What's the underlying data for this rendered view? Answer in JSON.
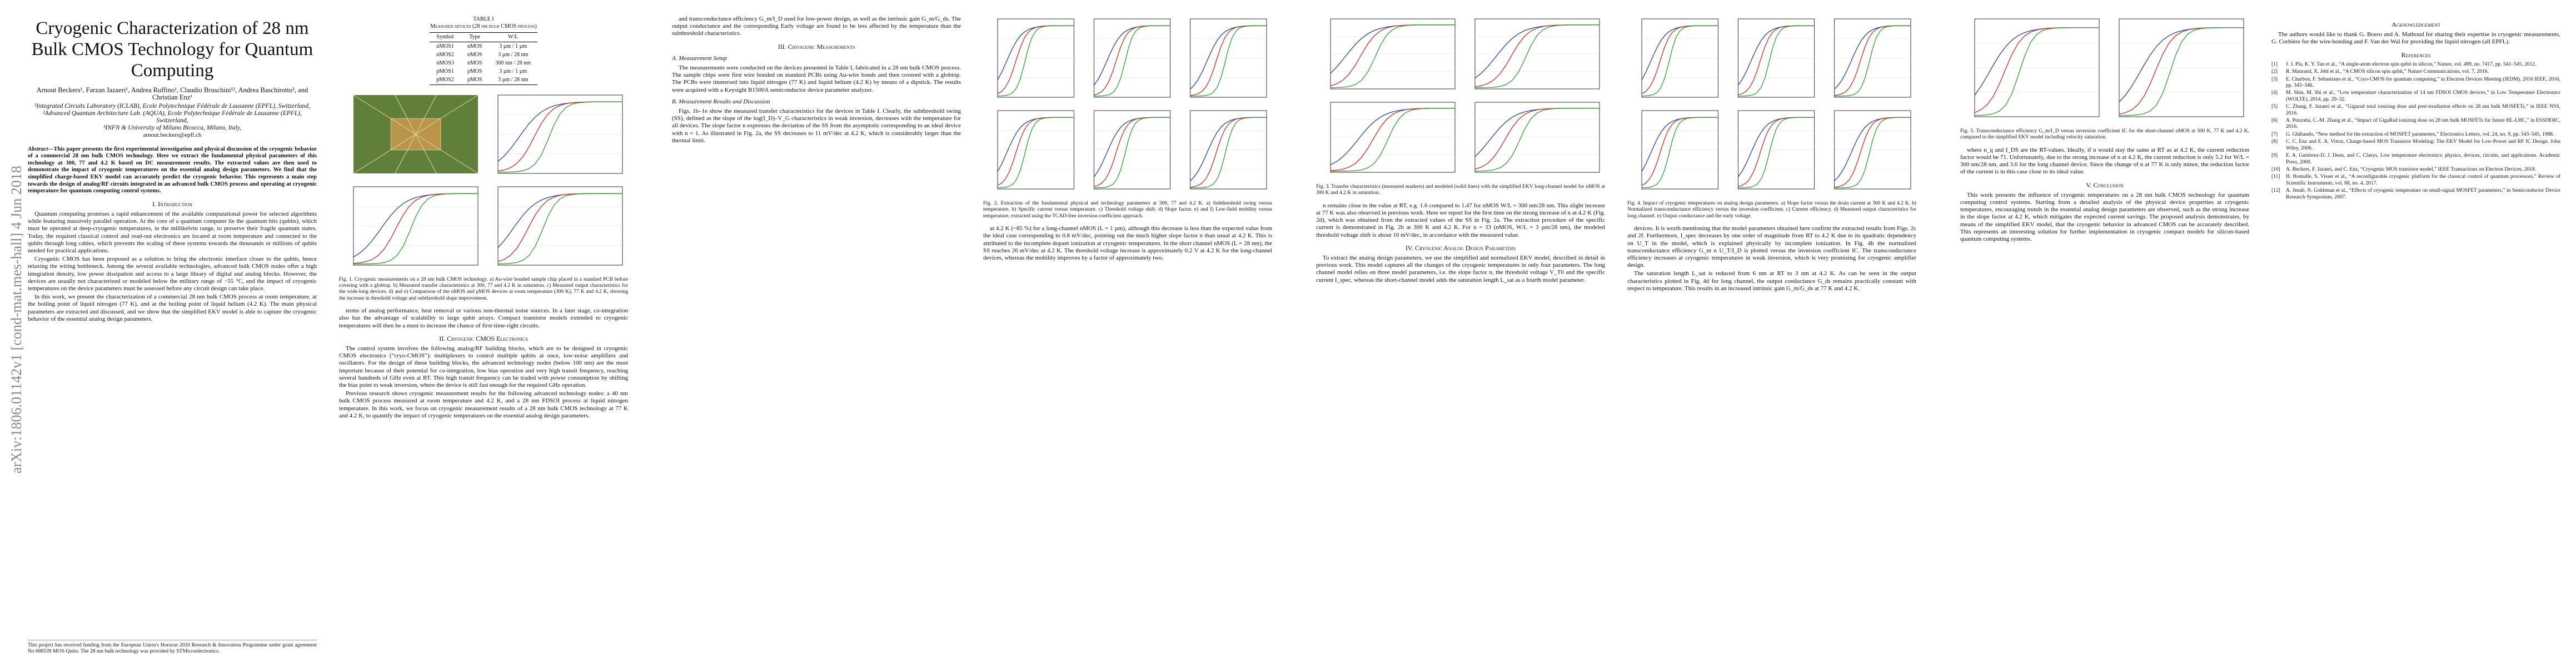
{
  "side_label": "arXiv:1806.01142v1  [cond-mat.mes-hall]  4 Jun 2018",
  "header": {
    "title": "Cryogenic Characterization of 28 nm Bulk CMOS Technology for Quantum Computing",
    "authors": "Arnout Beckers¹, Farzan Jazaeri¹, Andrea Ruffino¹, Claudio Bruschini¹², Andrea Baschirotto³, and Christian Enz¹",
    "affiliations": [
      "¹Integrated Circuits Laboratory (ICLAB), Ecole Polytechnique Fédérale de Lausanne (EPFL), Switzerland,",
      "²Advanced Quantum Architecture Lab. (AQUA), Ecole Polytechnique Fédérale de Lausanne (EPFL), Switzerland,",
      "³INFN & University of Milano Bicocca, Milano, Italy,"
    ],
    "email": "arnout.beckers@epfl.ch"
  },
  "abstract": {
    "label": "Abstract—",
    "text": "This paper presents the first experimental investigation and physical discussion of the cryogenic behavior of a commercial 28 nm bulk CMOS technology. Here we extract the fundamental physical parameters of this technology at 300, 77 and 4.2 K based on DC measurement results. The extracted values are then used to demonstrate the impact of cryogenic temperatures on the essential analog design parameters. We find that the simplified charge-based EKV model can accurately predict the cryogenic behavior. This represents a main step towards the design of analog/RF circuits integrated in an advanced bulk CMOS process and operating at cryogenic temperature for quantum computing control systems."
  },
  "footnote": "This project has received funding from the European Union's Horizon 2020 Research & Innovation Programme under grant agreement No 688539 MOS-Quito. The 28 nm bulk technology was provided by STMicroelectronics.",
  "table": {
    "title": "TABLE I",
    "caption": "Measured devices (28 nm bulk CMOS process)",
    "header": [
      "Symbol",
      "Type",
      "W/L"
    ],
    "rows": [
      [
        "nMOS1",
        "nMOS",
        "3 µm / 1 µm"
      ],
      [
        "nMOS2",
        "nMOS",
        "3 µm / 28 nm"
      ],
      [
        "nMOS3",
        "nMOS",
        "300 nm / 28 nm"
      ],
      [
        "pMOS1",
        "pMOS",
        "3 µm / 1 µm"
      ],
      [
        "pMOS2",
        "pMOS",
        "3 µm / 28 nm"
      ]
    ]
  },
  "figures": [
    {
      "caption": "Fig. 1. Cryogenic measurements on a 28 nm bulk CMOS technology. a) Au-wire bonded sample chip placed in a standard PCB before covering with a globtop. b) Measured transfer characteristics at 300, 77 and 4.2 K in saturation. c) Measured output characteristics for the wide-long devices. d) and e) Comparison of the nMOS and pMOS devices at room temperature (300 K), 77 K and 4.2 K, showing the increase in threshold voltage and subthreshold slope improvement."
    },
    {
      "caption": "Fig. 2. Extraction of the fundamental physical and technology parameters at 300, 77 and 4.2 K. a) Subthreshold swing versus temperature. b) Specific current versus temperature. c) Threshold voltage shift. d) Slope factor. e) and f) Low-field mobility versus temperature, extracted using the TCAD-free inversion coefficient approach."
    },
    {
      "caption": "Fig. 3. Transfer characteristics (measured markers) and modeled (solid lines) with the simplified EKV long-channel model for nMOS at 300 K and 4.2 K in saturation."
    },
    {
      "caption": "Fig. 4. Impact of cryogenic temperatures on analog design parameters. a) Slope factor versus the drain current at 300 K and 4.2 K. b) Normalized transconductance efficiency versus the inversion coefficient. c) Current efficiency. d) Measured output characteristics for long channel. e) Output conductance and the early voltage."
    },
    {
      "caption": "Fig. 5. Transconductance efficiency G_m/I_D versus inversion coefficient IC for the short-channel nMOS at 300 K, 77 K and 4.2 K, compared to the simplified EKV model including velocity saturation."
    }
  ],
  "body": [
    [
      {
        "heading": "I. Introduction"
      },
      {
        "text": "Quantum computing promises a rapid enhancement of the available computational power for selected algorithms while featuring massively parallel operation. At the core of a quantum computer lie the quantum bits (qubits), which must be operated at deep-cryogenic temperatures, in the millikelvin range, to preserve their fragile quantum states. Today, the required classical control and read-out electronics are located at room temperature and connected to the qubits through long cables, which prevents the scaling of these systems towards the thousands or millions of qubits needed for practical applications."
      },
      {
        "text": "Cryogenic CMOS has been proposed as a solution to bring the electronic interface closer to the qubits, hence relaxing the wiring bottleneck. Among the several available technologies, advanced bulk CMOS nodes offer a high integration density, low power dissipation and access to a large library of digital and analog blocks. However, the devices are usually not characterized or modeled below the military range of −55 °C, and the impact of cryogenic temperatures on the device parameters must be assessed before any circuit design can take place."
      },
      {
        "text": "In this work, we present the characterization of a commercial 28 nm bulk CMOS process at room temperature, at the boiling point of liquid nitrogen (77 K), and at the boiling point of liquid helium (4.2 K). The main physical parameters are extracted and discussed, and we show that the simplified EKV model is able to capture the cryogenic behavior of the essential analog design parameters."
      }
    ],
    [
      {
        "text": "terms of analog performance, heat removal or various non-thermal noise sources. In a later stage, co-integration also has the advantage of scalability to large qubit arrays. Compact transistor models extended to cryogenic temperatures will then be a must to increase the chance of first-time-right circuits."
      },
      {
        "heading": "II. Cryogenic CMOS Electronics"
      },
      {
        "text": "The control system involves the following analog/RF building blocks, which are to be designed in cryogenic CMOS electronics (“cryo-CMOS”): multiplexers to control multiple qubits at once, low-noise amplifiers and oscillators. For the design of these building blocks, the advanced technology nodes (below 100 nm) are the most important because of their potential for co-integration, low bias operation and very high transit frequency, reaching several hundreds of GHz even at RT. This high transit frequency can be traded with power consumption by shifting the bias point to weak inversion, where the device is still fast enough for the required GHz operation."
      },
      {
        "text": "Previous research shows cryogenic measurement results for the following advanced technology nodes: a 40 nm bulk CMOS process measured at room temperature and 4.2 K, and a 28 nm FDSOI process at liquid nitrogen temperature. In this work, we focus on cryogenic measurement results of a 28 nm bulk CMOS technology at 77 K and 4.2 K, to quantify the impact of cryogenic temperatures on the essential analog design parameters."
      }
    ],
    [
      {
        "text": "and transconductance efficiency G_m/I_D used for low-power design, as well as the intrinsic gain G_m/G_ds. The output conductance and the corresponding Early voltage are found to be less affected by the temperature than the subthreshold characteristics."
      },
      {
        "heading": "III. Cryogenic Measurements"
      },
      {
        "subheading": "A. Measurement Setup"
      },
      {
        "text": "The measurements were conducted on the devices presented in Table I, fabricated in a 28 nm bulk CMOS process. The sample chips were first wire bonded on standard PCBs using Au-wire bonds and then covered with a globtop. The PCBs were immersed into liquid nitrogen (77 K) and liquid helium (4.2 K) by means of a dipstick. The results were acquired with a Keysight B1500A semiconductor device parameter analyzer."
      },
      {
        "subheading": "B. Measurement Results and Discussion"
      },
      {
        "text": "Figs. 1b–1e show the measured transfer characteristics for the devices in Table I. Clearly, the subthreshold swing (SS), defined as the slope of the log(I_D)–V_G characteristics in weak inversion, decreases with the temperature for all devices. The slope factor n expresses the deviation of the SS from the asymptotic corresponding to an ideal device with n = 1. As illustrated in Fig. 2a, the SS decreases to 11 mV/dec at 4.2 K, which is considerably larger than the thermal limit."
      }
    ],
    [
      {
        "text": "at 4.2 K (~85 %) for a long-channel nMOS (L = 1 µm), although this decrease is less than the expected value from the ideal case corresponding to 0.8 mV/dec, pointing out the much higher slope factor n than usual at 4.2 K. This is attributed to the incomplete dopant ionization at cryogenic temperatures. In the short channel nMOS (L = 28 nm), the SS reaches 26 mV/dec at 4.2 K. The threshold voltage increase is approximately 0.2 V at 4.2 K for the long-channel devices, whereas the mobility improves by a factor of approximately two."
      }
    ],
    [
      {
        "text": "n remains close to the value at RT, e.g. 1.6 compared to 1.47 for nMOS W/L = 300 nm/28 nm. This slight increase at 77 K was also observed in previous work. Here we report for the first time on the strong increase of n at 4.2 K (Fig. 2d), which was obtained from the extracted values of the SS in Fig. 2a. The extraction procedure of the specific current is demonstrated in Fig. 2b at 300 K and 4.2 K. For n = 33 (nMOS, W/L = 3 µm/28 nm), the modeled threshold voltage shift is about 10 mV/dec, in accordance with the measured value."
      },
      {
        "heading": "IV. Cryogenic Analog Design Parameters"
      },
      {
        "text": "To extract the analog design parameters, we use the simplified and normalized EKV model, described in detail in previous work. This model captures all the changes of the cryogenic temperatures in only four parameters. The long channel model relies on three model parameters, i.e. the slope factor n, the threshold voltage V_T0 and the specific current I_spec, whereas the short-channel model adds the saturation length L_sat as a fourth model parameter."
      }
    ],
    [
      {
        "text": "devices. It is worth mentioning that the model parameters obtained here confirm the extracted results from Figs. 2c and 2f. Furthermore, I_spec decreases by one order of magnitude from RT to 4.2 K due to its quadratic dependency on U_T in the model, which is explained physically by incomplete ionization. In Fig. 4b the normalized transconductance efficiency G_m n U_T/I_D is plotted versus the inversion coefficient IC. The transconductance efficiency increases at cryogenic temperatures in weak inversion, which is very promising for cryogenic amplifier design."
      },
      {
        "text": "The saturation length L_sat is reduced from 6 nm at RT to 3 nm at 4.2 K. As can be seen in the output characteristics plotted in Fig. 4d for long channel, the output conductance G_ds remains practically constant with respect to temperature. This results in an increased intrinsic gain G_m/G_ds at 77 K and 4.2 K."
      }
    ],
    [
      {
        "text": "where n_q and I_DS are the RT-values. Ideally, if n would stay the same at RT as at 4.2 K, the current reduction factor would be 71. Unfortunately, due to the strong increase of n at 4.2 K, the current reduction is only 5.2 for W/L = 300 nm/28 nm, and 3.6 for the long channel device. Since the change of n at 77 K is only minor, the reduction factor of the current is in this case close to its ideal value."
      },
      {
        "heading": "V. Conclusion"
      },
      {
        "text": "This work presents the influence of cryogenic temperatures on a 28 nm bulk CMOS technology for quantum computing control systems. Starting from a detailed analysis of the physical device properties at cryogenic temperatures, encouraging trends in the essential analog design parameters are observed, such as the strong increase in the slope factor at 4.2 K, which mitigates the expected current savings. The proposed analysis demonstrates, by means of the simplified EKV model, that the cryogenic behavior in advanced CMOS can be accurately described. This represents an interesting solution for further implementation in cryogenic compact models for silicon-based quantum computing systems."
      }
    ],
    [
      {
        "heading": "Acknowledgement"
      },
      {
        "text": "The authors would like to thank G. Boero and A. Mathoud for sharing their expertise in cryogenic measurements, G. Corbière for the wire-bonding and F. Van der Wal for providing the liquid nitrogen (all EPFL)."
      }
    ]
  ],
  "references": {
    "heading": "References",
    "items": [
      [
        "[1]",
        "J. J. Pla, K. Y. Tan et al., “A single-atom electron spin qubit in silicon,” Nature, vol. 489, no. 7417, pp. 541–545, 2012."
      ],
      [
        "[2]",
        "R. Maurand, X. Jehl et al., “A CMOS silicon spin qubit,” Nature Communications, vol. 7, 2016."
      ],
      [
        "[3]",
        "E. Charbon, F. Sebastiano et al., “Cryo-CMOS for quantum computing,” in Electron Devices Meeting (IEDM), 2016 IEEE, 2016, pp. 343–346."
      ],
      [
        "[4]",
        "M. Shin, M. Shi et al., “Low temperature characterization of 14 nm FDSOI CMOS devices,” in Low Temperature Electronics (WOLTE), 2014, pp. 29–32."
      ],
      [
        "[5]",
        "C. Zhang, F. Jazaeri et al., “Gigarad total ionizing dose and post-irradiation effects on 28 nm bulk MOSFETs,” in IEEE NSS, 2016."
      ],
      [
        "[6]",
        "A. Pezzotta, C.-M. Zhang et al., “Impact of GigaRad ionizing dose on 28 nm bulk MOSFETs for future HL-LHC,” in ESSDERC, 2016."
      ],
      [
        "[7]",
        "G. Ghibaudo, “New method for the extraction of MOSFET parameters,” Electronics Letters, vol. 24, no. 9, pp. 543–545, 1988."
      ],
      [
        "[8]",
        "C. C. Enz and E. A. Vittoz, Charge-based MOS Transistor Modeling: The EKV Model for Low-Power and RF IC Design. John Wiley, 2006."
      ],
      [
        "[9]",
        "E. A. Gutiérrez-D, J. Deen, and C. Claeys, Low temperature electronics: physics, devices, circuits, and applications. Academic Press, 2000."
      ],
      [
        "[10]",
        "A. Beckers, F. Jazaeri, and C. Enz, “Cryogenic MOS transistor model,” IEEE Transactions on Electron Devices, 2018."
      ],
      [
        "[11]",
        "H. Homulle, S. Visser et al., “A reconfigurable cryogenic platform for the classical control of quantum processors,” Review of Scientific Instruments, vol. 88, no. 4, 2017."
      ],
      [
        "[12]",
        "A. Jenab, N. Gokhman et al., “Effects of cryogenic temperature on small-signal MOSFET parameters,” in Semiconductor Device Research Symposium, 2007."
      ]
    ]
  }
}
